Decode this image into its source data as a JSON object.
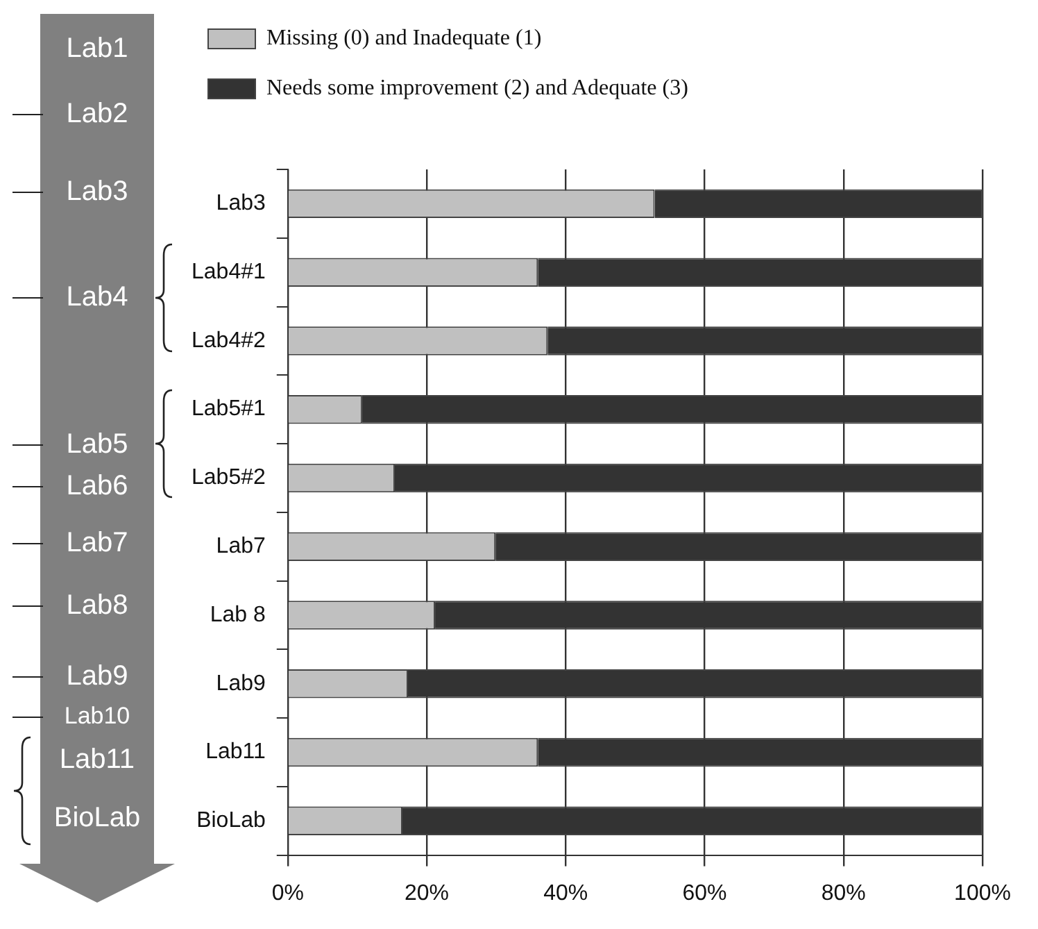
{
  "chart_data": {
    "type": "bar",
    "orientation": "horizontal",
    "stacked": true,
    "categories": [
      "Lab3",
      "Lab4#1",
      "Lab4#2",
      "Lab5#1",
      "Lab5#2",
      "Lab7",
      "Lab 8",
      "Lab9",
      "Lab11",
      "BioLab"
    ],
    "series": [
      {
        "name": "Missing (0) and Inadequate (1)",
        "color": "#c0c0c0",
        "values": [
          52.8,
          36.0,
          37.4,
          10.7,
          15.4,
          29.9,
          21.2,
          17.3,
          36.0,
          16.5
        ]
      },
      {
        "name": "Needs some improvement (2) and Adequate (3)",
        "color": "#333333",
        "values": [
          47.2,
          64.0,
          62.6,
          89.3,
          84.6,
          70.1,
          78.8,
          82.7,
          64.0,
          83.5
        ]
      }
    ],
    "xlim": [
      0,
      100
    ],
    "xticks": [
      {
        "value": 0,
        "label": "0%"
      },
      {
        "value": 20,
        "label": "20%"
      },
      {
        "value": 40,
        "label": "40%"
      },
      {
        "value": 60,
        "label": "60%"
      },
      {
        "value": 80,
        "label": "80%"
      },
      {
        "value": 100,
        "label": "100%"
      }
    ],
    "grid": "x",
    "legend": "top left",
    "annotations": [
      "Lab1",
      "Lab2",
      "Lab3",
      "Lab4",
      "Lab5",
      "Lab6",
      "Lab7",
      "Lab8",
      "Lab9",
      "Lab10",
      "Lab11",
      "BioLab"
    ]
  }
}
